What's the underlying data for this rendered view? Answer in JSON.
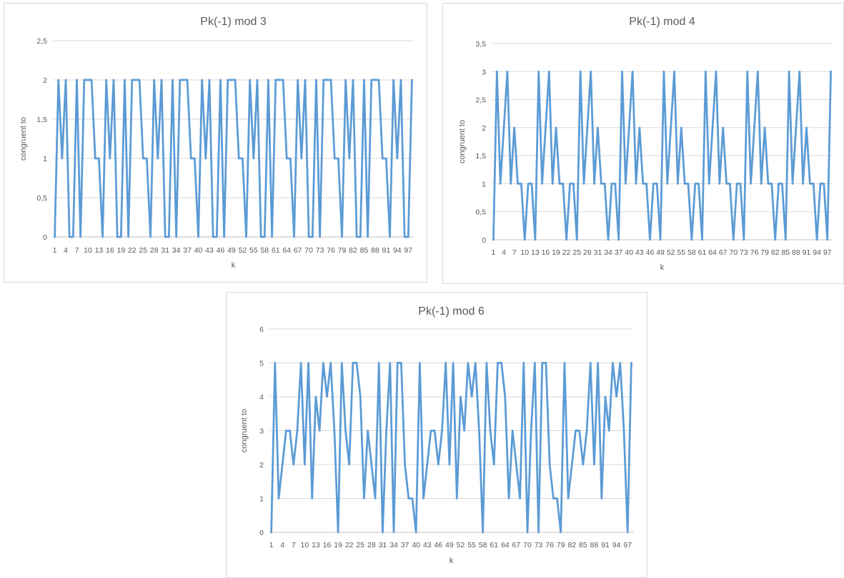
{
  "chart_data": [
    {
      "type": "line",
      "title": "Pk(-1) mod 3",
      "xlabel": "k",
      "ylabel": "congruent to",
      "ylim": [
        0,
        2.5
      ],
      "yticks": [
        "0",
        "0,5",
        "1",
        "1,5",
        "2",
        "2,5"
      ],
      "x_tick_labels": [
        "1",
        "4",
        "7",
        "10",
        "13",
        "16",
        "19",
        "22",
        "25",
        "28",
        "31",
        "34",
        "37",
        "40",
        "43",
        "46",
        "49",
        "52",
        "55",
        "58",
        "61",
        "64",
        "67",
        "70",
        "73",
        "76",
        "79",
        "82",
        "85",
        "88",
        "91",
        "94",
        "97"
      ],
      "grid": true,
      "legend": "none",
      "color": "#5b9bd5",
      "series": [
        {
          "x_start": 1,
          "values": [
            0,
            2,
            1,
            2,
            0,
            0,
            2,
            0,
            2,
            2,
            2,
            1,
            1,
            0,
            2,
            1,
            2,
            0,
            0,
            2,
            0,
            2,
            2,
            2,
            1,
            1,
            0,
            2,
            1,
            2,
            0,
            0,
            2,
            0,
            2,
            2,
            2,
            1,
            1,
            0,
            2,
            1,
            2,
            0,
            0,
            2,
            0,
            2,
            2,
            2,
            1,
            1,
            0,
            2,
            1,
            2,
            0,
            0,
            2,
            0,
            2,
            2,
            2,
            1,
            1,
            0,
            2,
            1,
            2,
            0,
            0,
            2,
            0,
            2,
            2,
            2,
            1,
            1,
            0,
            2,
            1,
            2,
            0,
            0,
            2,
            0,
            2,
            2,
            2,
            1,
            1,
            0,
            2,
            1,
            2,
            0,
            0,
            2
          ]
        }
      ]
    },
    {
      "type": "line",
      "title": "Pk(-1) mod 4",
      "xlabel": "k",
      "ylabel": "congruent to",
      "ylim": [
        0,
        3.5
      ],
      "yticks": [
        "0",
        "0,5",
        "1",
        "1,5",
        "2",
        "2,5",
        "3",
        "3,5"
      ],
      "x_tick_labels": [
        "1",
        "4",
        "7",
        "10",
        "13",
        "16",
        "19",
        "22",
        "25",
        "28",
        "31",
        "34",
        "37",
        "40",
        "43",
        "46",
        "49",
        "52",
        "55",
        "58",
        "61",
        "64",
        "67",
        "70",
        "73",
        "76",
        "79",
        "82",
        "85",
        "88",
        "91",
        "94",
        "97"
      ],
      "grid": true,
      "legend": "none",
      "color": "#5b9bd5",
      "series": [
        {
          "x_start": 1,
          "values": [
            0,
            3,
            1,
            2,
            3,
            1,
            2,
            1,
            1,
            0,
            1,
            1,
            0,
            3,
            1,
            2,
            3,
            1,
            2,
            1,
            1,
            0,
            1,
            1,
            0,
            3,
            1,
            2,
            3,
            1,
            2,
            1,
            1,
            0,
            1,
            1,
            0,
            3,
            1,
            2,
            3,
            1,
            2,
            1,
            1,
            0,
            1,
            1,
            0,
            3,
            1,
            2,
            3,
            1,
            2,
            1,
            1,
            0,
            1,
            1,
            0,
            3,
            1,
            2,
            3,
            1,
            2,
            1,
            1,
            0,
            1,
            1,
            0,
            3,
            1,
            2,
            3,
            1,
            2,
            1,
            1,
            0,
            1,
            1,
            0,
            3,
            1,
            2,
            3,
            1,
            2,
            1,
            1,
            0,
            1,
            1,
            0,
            3
          ]
        }
      ]
    },
    {
      "type": "line",
      "title": "Pk(-1) mod 6",
      "xlabel": "k",
      "ylabel": "congruent to",
      "ylim": [
        0,
        6
      ],
      "yticks": [
        "0",
        "1",
        "2",
        "3",
        "4",
        "5",
        "6"
      ],
      "x_tick_labels": [
        "1",
        "4",
        "7",
        "10",
        "13",
        "16",
        "19",
        "22",
        "25",
        "28",
        "31",
        "34",
        "37",
        "40",
        "43",
        "46",
        "49",
        "52",
        "55",
        "58",
        "61",
        "64",
        "67",
        "70",
        "73",
        "76",
        "79",
        "82",
        "85",
        "88",
        "91",
        "94",
        "97"
      ],
      "grid": true,
      "legend": "none",
      "color": "#5b9bd5",
      "series": [
        {
          "x_start": 1,
          "values": [
            0,
            5,
            1,
            2,
            3,
            3,
            2,
            3,
            5,
            2,
            5,
            1,
            4,
            3,
            5,
            4,
            5,
            3,
            0,
            5,
            3,
            2,
            5,
            5,
            4,
            1,
            3,
            2,
            1,
            5,
            0,
            3,
            5,
            0,
            5,
            5,
            2,
            1,
            1,
            0,
            5,
            1,
            2,
            3,
            3,
            2,
            3,
            5,
            2,
            5,
            1,
            4,
            3,
            5,
            4,
            5,
            3,
            0,
            5,
            3,
            2,
            5,
            5,
            4,
            1,
            3,
            2,
            1,
            5,
            0,
            3,
            5,
            0,
            5,
            5,
            2,
            1,
            1,
            0,
            5,
            1,
            2,
            3,
            3,
            2,
            3,
            5,
            2,
            5,
            1,
            4,
            3,
            5,
            4,
            5,
            3,
            0,
            5
          ]
        }
      ]
    }
  ]
}
